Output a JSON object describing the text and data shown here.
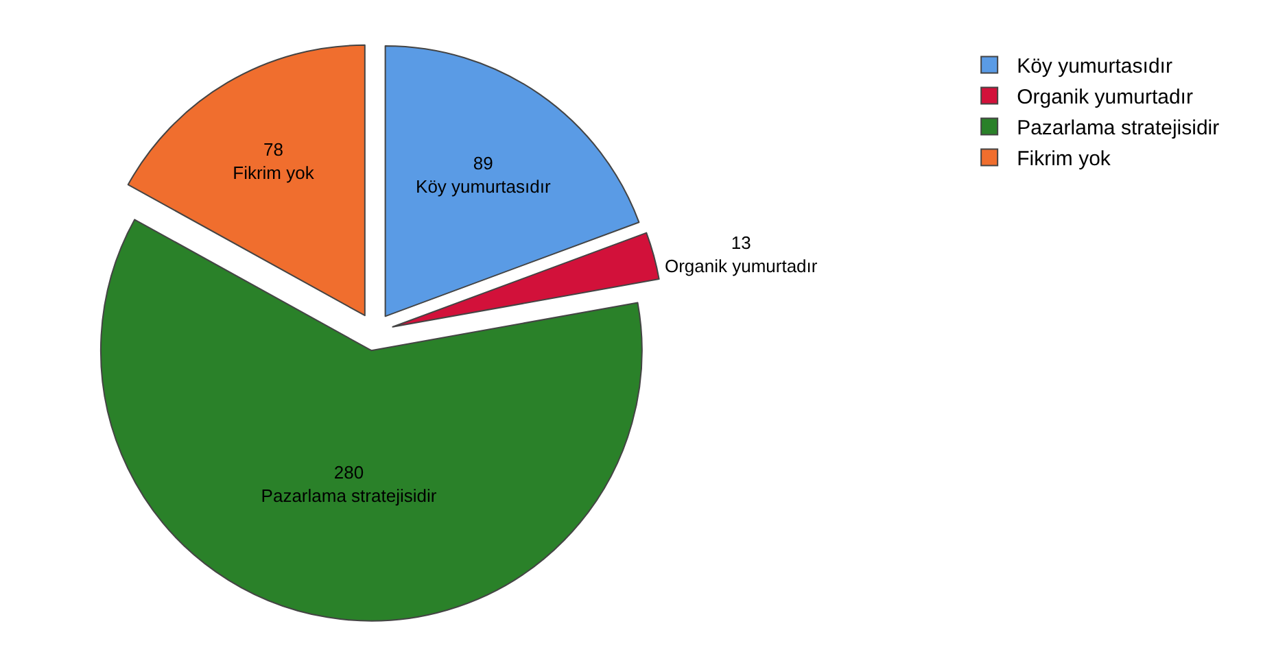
{
  "chart_data": {
    "type": "pie",
    "categories": [
      "Köy yumurtasıdır",
      "Organik yumurtadır",
      "Pazarlama stratejisidir",
      "Fikrim yok"
    ],
    "values": [
      89,
      13,
      280,
      78
    ],
    "colors": [
      "#5a9be5",
      "#d2113a",
      "#2a8129",
      "#f06e2e"
    ],
    "data_labels": true,
    "legend": "top right"
  }
}
